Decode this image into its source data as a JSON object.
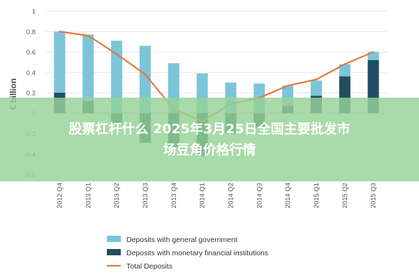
{
  "chart_data": {
    "type": "bar",
    "ylabel": "€ billion",
    "ylim": [
      -0.6,
      1
    ],
    "yticks": [
      "1",
      "0.8",
      "0.6",
      "0.4",
      "0.2",
      "0",
      "-0.2",
      "-0.4",
      "-0.6"
    ],
    "categories": [
      "2012 Q4",
      "2013 Q1",
      "2013 Q2",
      "2013 Q3",
      "2013 Q4",
      "2014 Q1",
      "2014 Q2",
      "2014 Q3",
      "2014 Q4",
      "2015 Q1",
      "2015 Q2",
      "2015 Q3"
    ],
    "series": [
      {
        "name": "Deposits with general government",
        "kind": "bar",
        "color": "#7cc5d9",
        "values": [
          0.8,
          0.77,
          0.71,
          0.66,
          0.49,
          0.39,
          0.3,
          0.29,
          0.27,
          0.32,
          0.48,
          0.6
        ]
      },
      {
        "name": "Deposits with monetary financial institutions",
        "kind": "bar",
        "color": "#1f4e63",
        "values": [
          0.2,
          0.12,
          -0.1,
          -0.29,
          -0.33,
          -0.42,
          -0.2,
          -0.14,
          0.07,
          0.17,
          0.36,
          0.52
        ]
      },
      {
        "name": "Total Deposits",
        "kind": "line",
        "color": "#e07a3a",
        "values": [
          0.8,
          0.76,
          0.58,
          0.38,
          0.04,
          -0.08,
          0.09,
          0.15,
          0.27,
          0.33,
          0.48,
          0.6
        ]
      }
    ],
    "legend_position": "bottom"
  },
  "overlay": {
    "line1": "股票杠杆什么 2025年3月25日全国主要批发市",
    "line2": "场豆角价格行情"
  }
}
